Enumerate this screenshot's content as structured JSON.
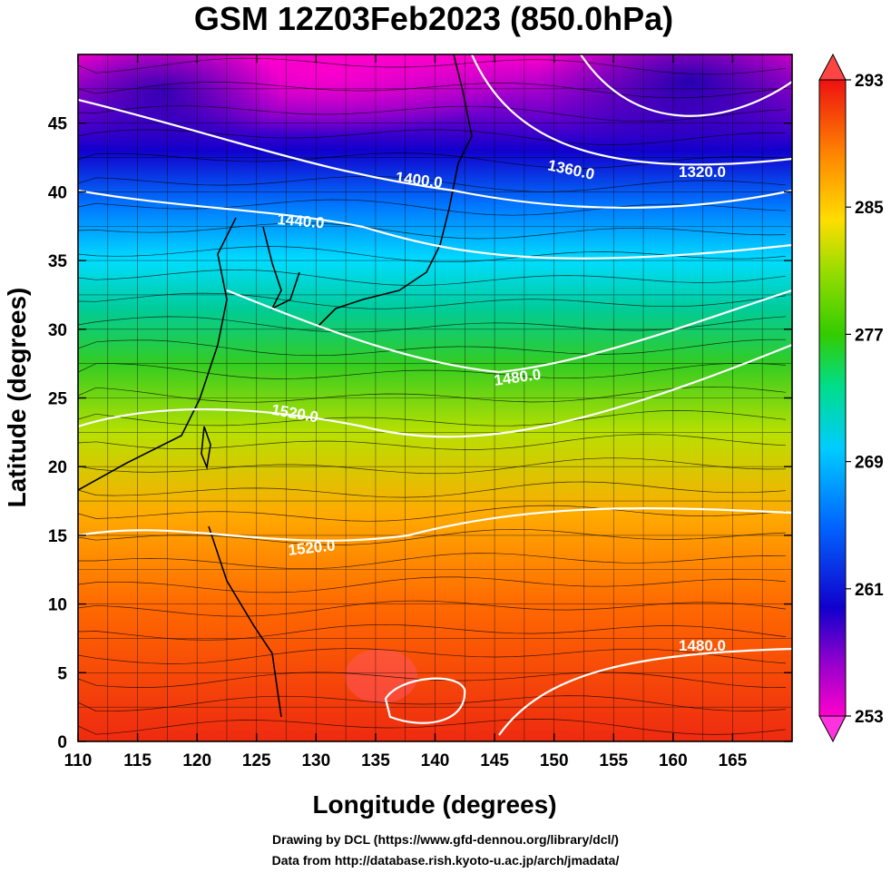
{
  "title": "GSM 12Z03Feb2023 (850.0hPa)",
  "xlabel": "Longitude (degrees)",
  "ylabel": "Latitude  (degrees)",
  "x_ticks": [
    110,
    115,
    120,
    125,
    130,
    135,
    140,
    145,
    150,
    155,
    160,
    165
  ],
  "y_ticks": [
    0,
    5,
    10,
    15,
    20,
    25,
    30,
    35,
    40,
    45
  ],
  "x_range": [
    110,
    170
  ],
  "y_range": [
    0,
    50
  ],
  "colorbar": {
    "ticks": [
      293,
      285,
      277,
      269,
      261,
      253
    ],
    "range": [
      253,
      293
    ],
    "colormap": [
      "#ff00cc",
      "#6600cc",
      "#0011cc",
      "#0066ff",
      "#00ccff",
      "#00dd88",
      "#33cc00",
      "#99dd00",
      "#ffdd00",
      "#ff8800",
      "#ff3300",
      "#ee1111"
    ]
  },
  "contours": [
    {
      "label": "1320.0"
    },
    {
      "label": "1360.0"
    },
    {
      "label": "1400.0"
    },
    {
      "label": "1440.0"
    },
    {
      "label": "1480.0"
    },
    {
      "label": "1520.0"
    },
    {
      "label": "1520.0"
    },
    {
      "label": "1480.0"
    }
  ],
  "credits": [
    "Drawing by DCL (https://www.gfd-dennou.org/library/dcl/)",
    "Data from http://database.rish.kyoto-u.ac.jp/arch/jmadata/"
  ]
}
